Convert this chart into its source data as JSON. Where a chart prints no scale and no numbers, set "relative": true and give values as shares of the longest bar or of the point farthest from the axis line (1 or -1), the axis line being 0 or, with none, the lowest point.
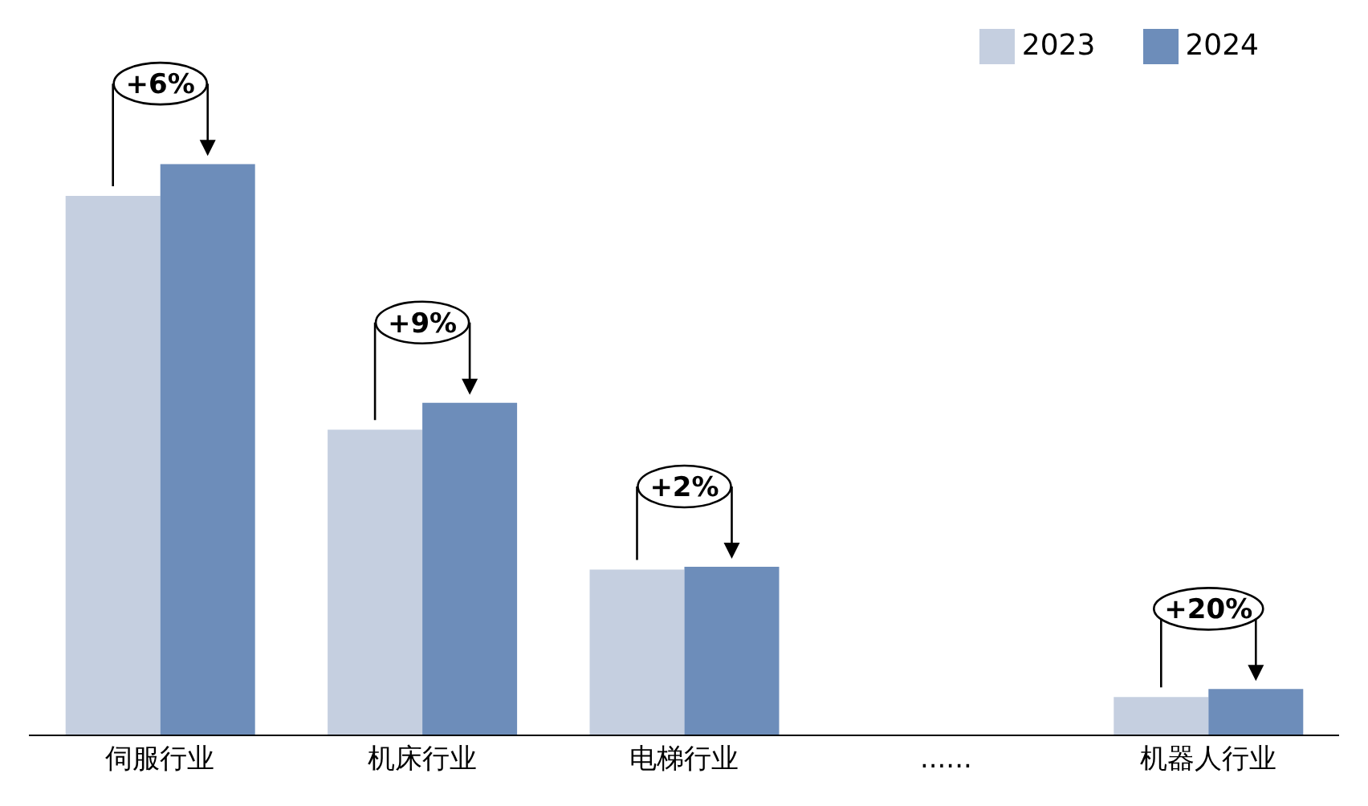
{
  "chart_data": {
    "type": "bar",
    "relative": true,
    "categories": [
      "伺服行业",
      "机床行业",
      "电梯行业",
      "......",
      "机器人行业"
    ],
    "series": [
      {
        "name": "2023",
        "color": "#c5cfe0",
        "values": [
          0.944,
          0.535,
          0.29,
          null,
          0.067
        ]
      },
      {
        "name": "2024",
        "color": "#6d8dba",
        "values": [
          1,
          0.582,
          0.295,
          null,
          0.081
        ]
      }
    ],
    "annotations": [
      "+6%",
      "+9%",
      "+2%",
      "+20%"
    ],
    "legend": "top right"
  }
}
